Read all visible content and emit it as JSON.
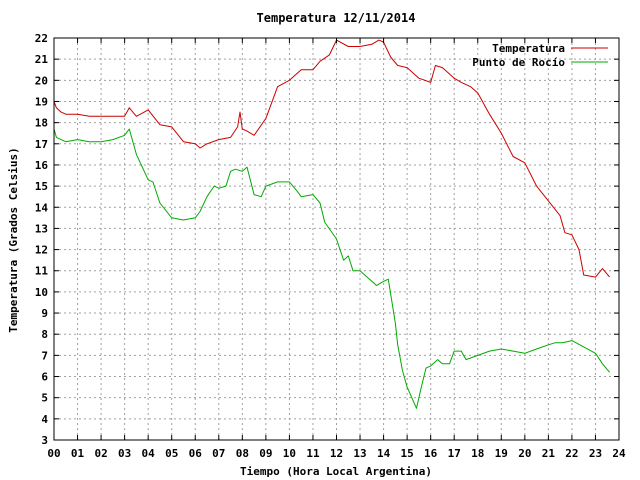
{
  "chart_data": {
    "type": "line",
    "title": "Temperatura 12/11/2014",
    "xlabel": "Tiempo (Hora Local Argentina)",
    "ylabel": "Temperatura (Grados Celsius)",
    "xlim": [
      0,
      24
    ],
    "ylim": [
      3,
      22
    ],
    "xticks": [
      "00",
      "01",
      "02",
      "03",
      "04",
      "05",
      "06",
      "07",
      "08",
      "09",
      "10",
      "11",
      "12",
      "13",
      "14",
      "15",
      "16",
      "17",
      "18",
      "19",
      "20",
      "21",
      "22",
      "23",
      "24"
    ],
    "yticks": [
      3,
      4,
      5,
      6,
      7,
      8,
      9,
      10,
      11,
      12,
      13,
      14,
      15,
      16,
      17,
      18,
      19,
      20,
      21,
      22
    ],
    "grid": true,
    "legend_position": "top-right",
    "series": [
      {
        "name": "Temperatura",
        "color": "#cc0000",
        "x": [
          0,
          0.1,
          0.3,
          0.5,
          1,
          1.5,
          2,
          2.5,
          3,
          3.2,
          3.5,
          4,
          4.5,
          5,
          5.5,
          6,
          6.2,
          6.5,
          7,
          7.5,
          7.8,
          7.9,
          8,
          8.2,
          8.5,
          9,
          9.5,
          10,
          10.5,
          11,
          11.3,
          11.7,
          12,
          12.5,
          13,
          13.5,
          13.8,
          14,
          14.3,
          14.6,
          15,
          15.5,
          16,
          16.2,
          16.5,
          17,
          17.3,
          17.7,
          18,
          18.5,
          19,
          19.5,
          20,
          20.5,
          21,
          21.5,
          21.7,
          22,
          22.3,
          22.5,
          23,
          23.3,
          23.6
        ],
        "y": [
          19,
          18.7,
          18.5,
          18.4,
          18.4,
          18.3,
          18.3,
          18.3,
          18.3,
          18.7,
          18.3,
          18.6,
          17.9,
          17.8,
          17.1,
          17,
          16.8,
          17,
          17.2,
          17.3,
          17.8,
          18.5,
          17.7,
          17.6,
          17.4,
          18.2,
          19.7,
          20,
          20.5,
          20.5,
          20.9,
          21.2,
          21.9,
          21.6,
          21.6,
          21.7,
          21.9,
          21.8,
          21.1,
          20.7,
          20.6,
          20.1,
          19.9,
          20.7,
          20.6,
          20.1,
          19.9,
          19.7,
          19.4,
          18.4,
          17.5,
          16.4,
          16.1,
          15,
          14.3,
          13.6,
          12.8,
          12.7,
          12,
          10.8,
          10.7,
          11.1,
          10.7
        ]
      },
      {
        "name": "Punto de Rocío",
        "color": "#00aa00",
        "x": [
          0,
          0.1,
          0.3,
          0.5,
          1,
          1.5,
          2,
          2.5,
          3,
          3.2,
          3.5,
          4,
          4.2,
          4.5,
          5,
          5.5,
          6,
          6.2,
          6.5,
          6.8,
          7,
          7.3,
          7.5,
          7.7,
          8,
          8.2,
          8.5,
          8.8,
          9,
          9.5,
          10,
          10.3,
          10.5,
          11,
          11.3,
          11.5,
          12,
          12.3,
          12.5,
          12.7,
          13,
          13.3,
          13.5,
          13.7,
          14,
          14.2,
          14.5,
          14.6,
          14.8,
          15,
          15.2,
          15.4,
          15.6,
          15.8,
          16,
          16.3,
          16.5,
          16.8,
          17,
          17.3,
          17.5,
          18,
          18.5,
          19,
          19.5,
          20,
          20.5,
          21,
          21.3,
          21.6,
          22,
          22.5,
          23,
          23.3,
          23.6
        ],
        "y": [
          17.7,
          17.3,
          17.2,
          17.1,
          17.2,
          17.1,
          17.1,
          17.2,
          17.4,
          17.7,
          16.5,
          15.3,
          15.2,
          14.2,
          13.5,
          13.4,
          13.5,
          13.8,
          14.5,
          15,
          14.9,
          15,
          15.7,
          15.8,
          15.7,
          15.9,
          14.6,
          14.5,
          15,
          15.2,
          15.2,
          14.8,
          14.5,
          14.6,
          14.2,
          13.3,
          12.5,
          11.5,
          11.7,
          11,
          11,
          10.7,
          10.5,
          10.3,
          10.5,
          10.6,
          8.5,
          7.5,
          6.3,
          5.5,
          5,
          4.5,
          5.5,
          6.4,
          6.5,
          6.8,
          6.6,
          6.6,
          7.2,
          7.2,
          6.8,
          7,
          7.2,
          7.3,
          7.2,
          7.1,
          7.3,
          7.5,
          7.6,
          7.6,
          7.7,
          7.4,
          7.1,
          6.6,
          6.2
        ]
      }
    ]
  }
}
